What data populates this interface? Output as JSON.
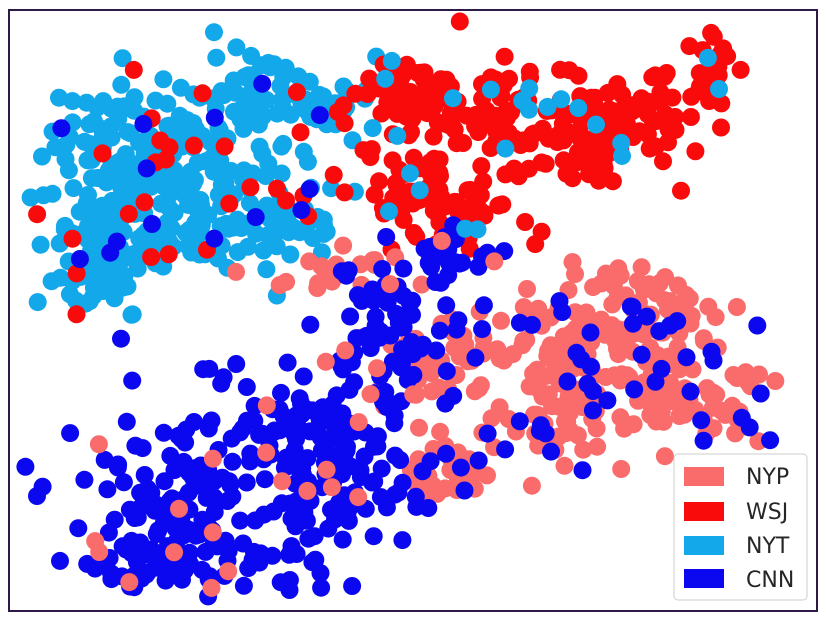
{
  "chart_data": {
    "type": "scatter",
    "title": "",
    "xlabel": "",
    "ylabel": "",
    "xlim": [
      0,
      100
    ],
    "ylim": [
      0,
      100
    ],
    "axis_ticks": false,
    "grid": false,
    "legend_position": "bottom-right",
    "series": [
      {
        "name": "NYP",
        "color": "#FA6B6B"
      },
      {
        "name": "WSJ",
        "color": "#FA0B0B"
      },
      {
        "name": "NYT",
        "color": "#12A8EA"
      },
      {
        "name": "CNN",
        "color": "#0B08F0"
      }
    ]
  },
  "colors": {
    "frame": "#2E1A47",
    "legend_border": "#cccccc"
  }
}
